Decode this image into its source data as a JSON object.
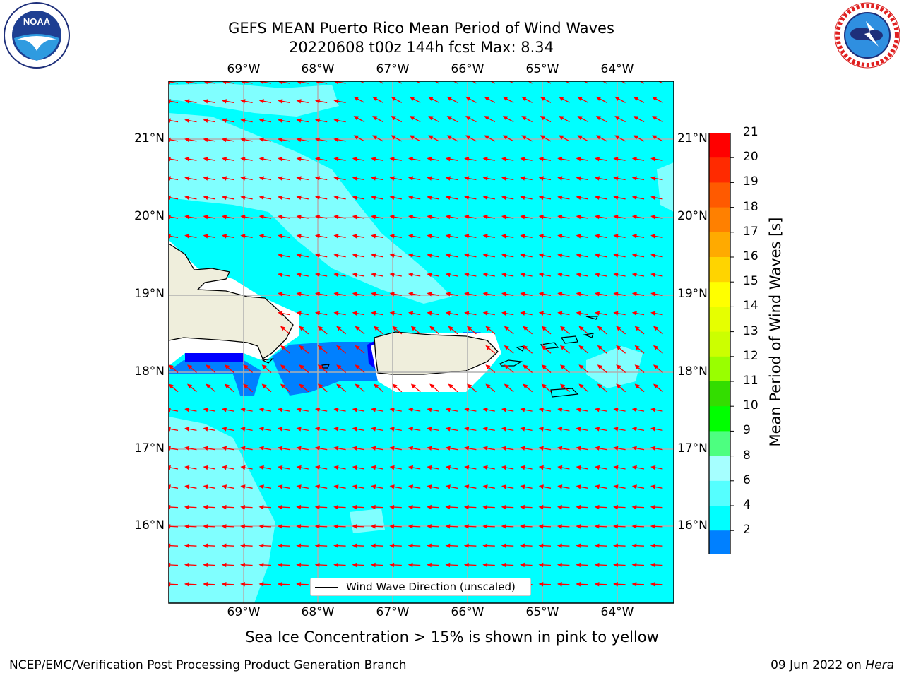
{
  "title": {
    "line1": "GEFS MEAN Puerto Rico Mean Period of Wind Waves",
    "line2": "20220608 t00z 144h fcst   Max: 8.34"
  },
  "logos": {
    "left": "NOAA",
    "left_ring_text": "NATIONAL OCEANIC AND ATMOSPHERIC ADMINISTRATION · U.S. DEPARTMENT OF COMMERCE",
    "right_ring_text": "NATIONAL WEATHER SERVICE"
  },
  "map": {
    "lon_labels": [
      "69°W",
      "68°W",
      "67°W",
      "66°W",
      "65°W",
      "64°W"
    ],
    "lat_labels": [
      "21°N",
      "20°N",
      "19°N",
      "18°N",
      "17°N",
      "16°N"
    ],
    "colors": {
      "ocean_6_8": "#00ffff",
      "ocean_8_9": "#80ffff",
      "ocean_4_6": "#0080ff",
      "ocean_2_4": "#0000ff",
      "land": "#efeedc",
      "arrows": "#ff0000",
      "grid": "#b0b0b0"
    },
    "legend_label": "Wind Wave Direction (unscaled)"
  },
  "colorbar": {
    "label": "Mean Period of Wind Waves [s]",
    "ticks": [
      "21",
      "20",
      "19",
      "18",
      "17",
      "16",
      "15",
      "14",
      "13",
      "12",
      "11",
      "10",
      "9",
      "8",
      "6",
      "4",
      "2"
    ],
    "colors": [
      "#ff0000",
      "#ff2a00",
      "#ff5a00",
      "#ff8000",
      "#ffaa00",
      "#ffd400",
      "#ffff00",
      "#e6ff00",
      "#ccff00",
      "#99ff00",
      "#33dd00",
      "#00ff00",
      "#4dff80",
      "#a6ffff",
      "#55ffff",
      "#00ffff",
      "#0080ff",
      "#0000ff"
    ]
  },
  "notes": {
    "sea_ice": "Sea Ice Concentration > 15% is shown in pink to yellow"
  },
  "footer": {
    "left": "NCEP/EMC/Verification Post Processing Product Generation Branch",
    "right_prefix": "09 Jun 2022 on ",
    "right_host": "Hera"
  }
}
